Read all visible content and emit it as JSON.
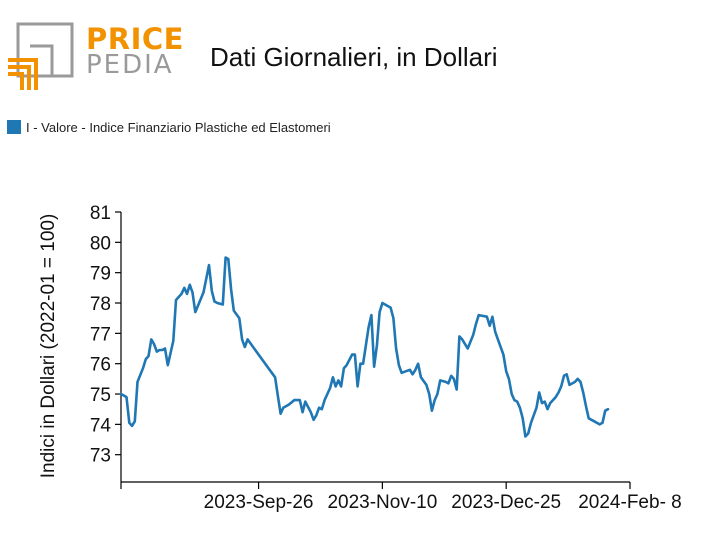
{
  "logo": {
    "line1": "PRICE",
    "line2": "PEDIA",
    "gray": "#9a9a9a",
    "orange": "#f39200"
  },
  "title": "Dati Giornalieri, in Dollari",
  "legend": {
    "label": "I - Valore - Indice Finanziario Plastiche ed Elastomeri",
    "color": "#1f77b4"
  },
  "chart_data": {
    "type": "line",
    "title": "Dati Giornalieri, in Dollari",
    "xlabel": "",
    "ylabel": "Indici in Dollari (2022-01 = 100)",
    "ylim": [
      72.1,
      81
    ],
    "x_range": [
      "2023-08-07",
      "2024-02-08"
    ],
    "x_ticks": [
      {
        "date": "2023-08-07",
        "label": ""
      },
      {
        "date": "2023-09-26",
        "label": "2023-Sep-26"
      },
      {
        "date": "2023-11-10",
        "label": "2023-Nov-10"
      },
      {
        "date": "2023-12-25",
        "label": "2023-Dec-25"
      },
      {
        "date": "2024-02-08",
        "label": "2024-Feb- 8"
      }
    ],
    "y_ticks": [
      73,
      74,
      75,
      76,
      77,
      78,
      79,
      80,
      81
    ],
    "grid": false,
    "legend_position": "top-left",
    "series": [
      {
        "name": "I - Valore - Indice Finanziario Plastiche ed Elastomeri",
        "color": "#1f77b4",
        "points": [
          [
            "2023-08-07",
            75.0
          ],
          [
            "2023-08-08",
            74.95
          ],
          [
            "2023-08-09",
            74.9
          ],
          [
            "2023-08-10",
            74.05
          ],
          [
            "2023-08-11",
            73.95
          ],
          [
            "2023-08-12",
            74.1
          ],
          [
            "2023-08-13",
            75.4
          ],
          [
            "2023-08-15",
            75.85
          ],
          [
            "2023-08-16",
            76.15
          ],
          [
            "2023-08-17",
            76.25
          ],
          [
            "2023-08-18",
            76.8
          ],
          [
            "2023-08-19",
            76.65
          ],
          [
            "2023-08-20",
            76.4
          ],
          [
            "2023-08-21",
            76.45
          ],
          [
            "2023-08-22",
            76.45
          ],
          [
            "2023-08-23",
            76.5
          ],
          [
            "2023-08-24",
            75.95
          ],
          [
            "2023-08-26",
            76.75
          ],
          [
            "2023-08-27",
            78.1
          ],
          [
            "2023-08-29",
            78.3
          ],
          [
            "2023-08-30",
            78.5
          ],
          [
            "2023-08-31",
            78.3
          ],
          [
            "2023-09-01",
            78.6
          ],
          [
            "2023-09-02",
            78.35
          ],
          [
            "2023-09-03",
            77.7
          ],
          [
            "2023-09-06",
            78.35
          ],
          [
            "2023-09-08",
            79.25
          ],
          [
            "2023-09-09",
            78.4
          ],
          [
            "2023-09-10",
            78.05
          ],
          [
            "2023-09-11",
            78.0
          ],
          [
            "2023-09-13",
            77.95
          ],
          [
            "2023-09-14",
            79.5
          ],
          [
            "2023-09-15",
            79.45
          ],
          [
            "2023-09-16",
            78.45
          ],
          [
            "2023-09-17",
            77.75
          ],
          [
            "2023-09-19",
            77.5
          ],
          [
            "2023-09-20",
            76.8
          ],
          [
            "2023-09-21",
            76.55
          ],
          [
            "2023-09-22",
            76.8
          ],
          [
            "2023-09-24",
            76.55
          ],
          [
            "2023-09-26",
            76.3
          ],
          [
            "2023-10-02",
            75.55
          ],
          [
            "2023-10-03",
            74.95
          ],
          [
            "2023-10-04",
            74.35
          ],
          [
            "2023-10-05",
            74.55
          ],
          [
            "2023-10-07",
            74.65
          ],
          [
            "2023-10-09",
            74.8
          ],
          [
            "2023-10-11",
            74.8
          ],
          [
            "2023-10-12",
            74.4
          ],
          [
            "2023-10-13",
            74.75
          ],
          [
            "2023-10-15",
            74.4
          ],
          [
            "2023-10-16",
            74.15
          ],
          [
            "2023-10-17",
            74.3
          ],
          [
            "2023-10-18",
            74.55
          ],
          [
            "2023-10-19",
            74.5
          ],
          [
            "2023-10-20",
            74.8
          ],
          [
            "2023-10-22",
            75.2
          ],
          [
            "2023-10-23",
            75.55
          ],
          [
            "2023-10-24",
            75.25
          ],
          [
            "2023-10-25",
            75.45
          ],
          [
            "2023-10-26",
            75.25
          ],
          [
            "2023-10-27",
            75.85
          ],
          [
            "2023-10-28",
            75.95
          ],
          [
            "2023-10-30",
            76.3
          ],
          [
            "2023-10-31",
            76.3
          ],
          [
            "2023-11-01",
            75.25
          ],
          [
            "2023-11-02",
            76.0
          ],
          [
            "2023-11-03",
            76.0
          ],
          [
            "2023-11-05",
            77.2
          ],
          [
            "2023-11-06",
            77.6
          ],
          [
            "2023-11-07",
            75.9
          ],
          [
            "2023-11-08",
            76.6
          ],
          [
            "2023-11-09",
            77.7
          ],
          [
            "2023-11-10",
            78.0
          ],
          [
            "2023-11-13",
            77.85
          ],
          [
            "2023-11-14",
            77.5
          ],
          [
            "2023-11-15",
            76.5
          ],
          [
            "2023-11-16",
            75.95
          ],
          [
            "2023-11-17",
            75.7
          ],
          [
            "2023-11-20",
            75.8
          ],
          [
            "2023-11-21",
            75.65
          ],
          [
            "2023-11-22",
            75.8
          ],
          [
            "2023-11-23",
            76.0
          ],
          [
            "2023-11-24",
            75.55
          ],
          [
            "2023-11-26",
            75.3
          ],
          [
            "2023-11-27",
            75.0
          ],
          [
            "2023-11-28",
            74.45
          ],
          [
            "2023-11-29",
            74.8
          ],
          [
            "2023-11-30",
            75.0
          ],
          [
            "2023-12-01",
            75.45
          ],
          [
            "2023-12-03",
            75.4
          ],
          [
            "2023-12-04",
            75.35
          ],
          [
            "2023-12-05",
            75.6
          ],
          [
            "2023-12-06",
            75.5
          ],
          [
            "2023-12-07",
            75.15
          ],
          [
            "2023-12-08",
            76.9
          ],
          [
            "2023-12-09",
            76.8
          ],
          [
            "2023-12-11",
            76.5
          ],
          [
            "2023-12-13",
            76.95
          ],
          [
            "2023-12-14",
            77.3
          ],
          [
            "2023-12-15",
            77.6
          ],
          [
            "2023-12-18",
            77.55
          ],
          [
            "2023-12-19",
            77.25
          ],
          [
            "2023-12-20",
            77.55
          ],
          [
            "2023-12-21",
            77.05
          ],
          [
            "2023-12-22",
            76.8
          ],
          [
            "2023-12-24",
            76.3
          ],
          [
            "2023-12-25",
            75.75
          ],
          [
            "2023-12-26",
            75.5
          ],
          [
            "2023-12-27",
            75.0
          ],
          [
            "2023-12-28",
            74.8
          ],
          [
            "2023-12-29",
            74.75
          ],
          [
            "2023-12-30",
            74.55
          ],
          [
            "2023-12-31",
            74.2
          ],
          [
            "2024-01-01",
            73.6
          ],
          [
            "2024-01-02",
            73.7
          ],
          [
            "2024-01-03",
            74.05
          ],
          [
            "2024-01-05",
            74.55
          ],
          [
            "2024-01-06",
            75.05
          ],
          [
            "2024-01-07",
            74.7
          ],
          [
            "2024-01-08",
            74.75
          ],
          [
            "2024-01-09",
            74.5
          ],
          [
            "2024-01-10",
            74.7
          ],
          [
            "2024-01-12",
            74.9
          ],
          [
            "2024-01-13",
            75.05
          ],
          [
            "2024-01-14",
            75.25
          ],
          [
            "2024-01-15",
            75.6
          ],
          [
            "2024-01-16",
            75.65
          ],
          [
            "2024-01-17",
            75.3
          ],
          [
            "2024-01-19",
            75.4
          ],
          [
            "2024-01-20",
            75.5
          ],
          [
            "2024-01-21",
            75.4
          ],
          [
            "2024-01-22",
            75.05
          ],
          [
            "2024-01-23",
            74.6
          ],
          [
            "2024-01-24",
            74.2
          ],
          [
            "2024-01-26",
            74.1
          ],
          [
            "2024-01-28",
            74.0
          ],
          [
            "2024-01-29",
            74.05
          ],
          [
            "2024-01-30",
            74.45
          ],
          [
            "2024-01-31",
            74.5
          ]
        ]
      }
    ]
  }
}
